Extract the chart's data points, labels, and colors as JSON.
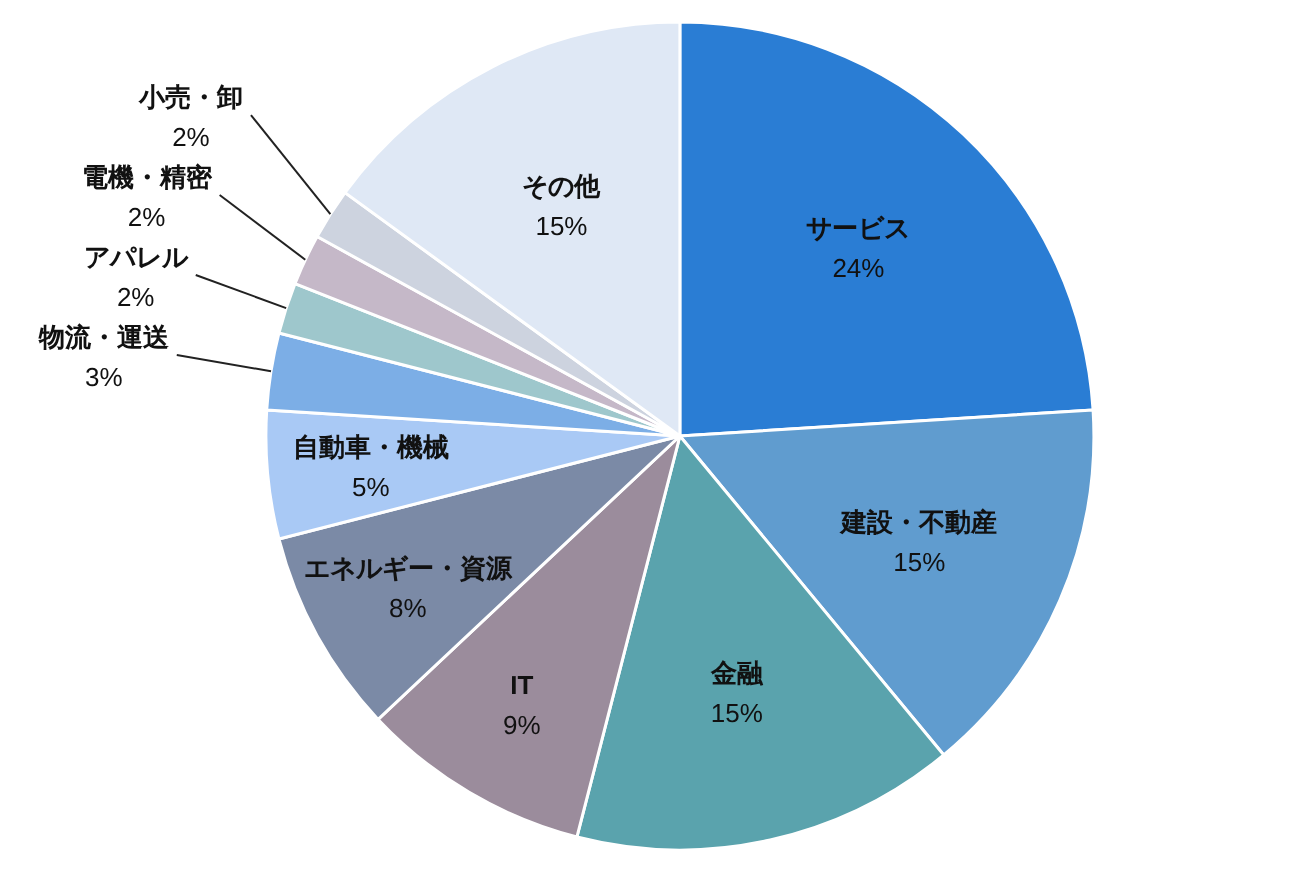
{
  "chart_data": {
    "type": "pie",
    "categories": [
      "サービス",
      "建設・不動産",
      "金融",
      "IT",
      "エネルギー・資源",
      "自動車・機械",
      "物流・運送",
      "アパレル",
      "電機・精密",
      "小売・卸",
      "その他"
    ],
    "values": [
      24,
      15,
      15,
      9,
      8,
      5,
      3,
      2,
      2,
      2,
      15
    ],
    "colors": [
      "#2a7dd4",
      "#609ccf",
      "#5aa3ad",
      "#9b8c9c",
      "#7b8aa6",
      "#a9c9f5",
      "#7caee6",
      "#9ec7cc",
      "#c5b8c8",
      "#cdd3df",
      "#dfe8f5"
    ],
    "value_labels": [
      "24%",
      "15%",
      "15%",
      "9%",
      "8%",
      "5%",
      "3%",
      "2%",
      "2%",
      "2%",
      "15%"
    ]
  }
}
